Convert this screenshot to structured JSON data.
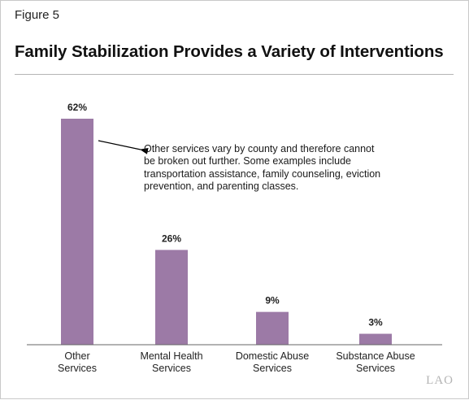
{
  "figure_label": "Figure 5",
  "title": "Family Stabilization Provides a Variety of Interventions",
  "annotation": "Other services vary by county and therefore cannot be broken out further. Some examples include transportation assistance, family counseling, eviction prevention, and parenting classes.",
  "logo_text": "LAO",
  "colors": {
    "bar": "#9c7aa6",
    "axis": "#666666"
  },
  "chart_data": {
    "type": "bar",
    "title": "Family Stabilization Provides a Variety of Interventions",
    "xlabel": "",
    "ylabel": "",
    "categories": [
      [
        "Other",
        "Services"
      ],
      [
        "Mental Health",
        "Services"
      ],
      [
        "Domestic Abuse",
        "Services"
      ],
      [
        "Substance Abuse",
        "Services"
      ]
    ],
    "values": [
      62,
      26,
      9,
      3
    ],
    "value_labels": [
      "62%",
      "26%",
      "9%",
      "3%"
    ],
    "unit": "%",
    "ylim": [
      0,
      62
    ],
    "grid": false,
    "legend": "none"
  }
}
